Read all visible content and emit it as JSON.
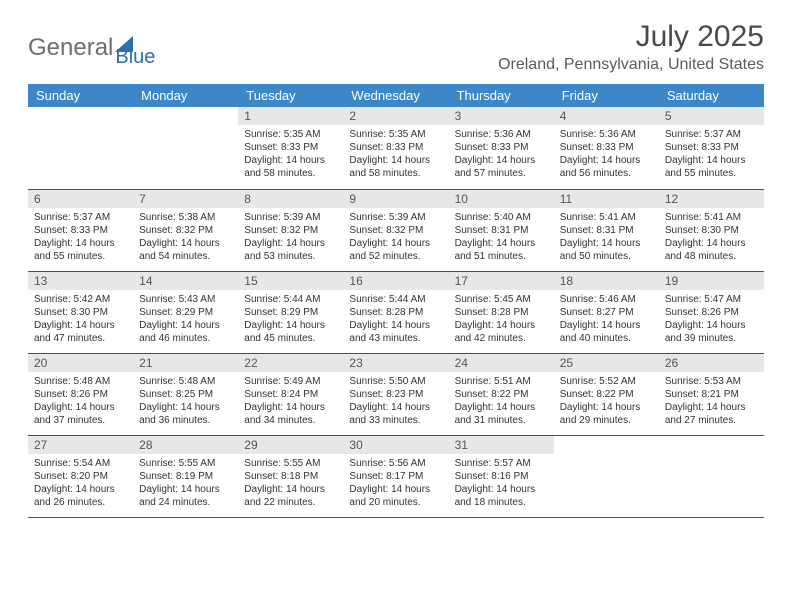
{
  "logo": {
    "text1": "General",
    "text2": "Blue"
  },
  "title": "July 2025",
  "location": "Oreland, Pennsylvania, United States",
  "colors": {
    "header_bg": "#3b87c8",
    "header_text": "#ffffff",
    "daynum_bg": "#e7e7e7",
    "border": "#1f5a8a",
    "logo_gray": "#6e6e6e",
    "logo_blue": "#2f6fa8"
  },
  "weekdays": [
    "Sunday",
    "Monday",
    "Tuesday",
    "Wednesday",
    "Thursday",
    "Friday",
    "Saturday"
  ],
  "weeks": [
    [
      null,
      null,
      {
        "n": "1",
        "sr": "5:35 AM",
        "ss": "8:33 PM",
        "dl": "14 hours and 58 minutes."
      },
      {
        "n": "2",
        "sr": "5:35 AM",
        "ss": "8:33 PM",
        "dl": "14 hours and 58 minutes."
      },
      {
        "n": "3",
        "sr": "5:36 AM",
        "ss": "8:33 PM",
        "dl": "14 hours and 57 minutes."
      },
      {
        "n": "4",
        "sr": "5:36 AM",
        "ss": "8:33 PM",
        "dl": "14 hours and 56 minutes."
      },
      {
        "n": "5",
        "sr": "5:37 AM",
        "ss": "8:33 PM",
        "dl": "14 hours and 55 minutes."
      }
    ],
    [
      {
        "n": "6",
        "sr": "5:37 AM",
        "ss": "8:33 PM",
        "dl": "14 hours and 55 minutes."
      },
      {
        "n": "7",
        "sr": "5:38 AM",
        "ss": "8:32 PM",
        "dl": "14 hours and 54 minutes."
      },
      {
        "n": "8",
        "sr": "5:39 AM",
        "ss": "8:32 PM",
        "dl": "14 hours and 53 minutes."
      },
      {
        "n": "9",
        "sr": "5:39 AM",
        "ss": "8:32 PM",
        "dl": "14 hours and 52 minutes."
      },
      {
        "n": "10",
        "sr": "5:40 AM",
        "ss": "8:31 PM",
        "dl": "14 hours and 51 minutes."
      },
      {
        "n": "11",
        "sr": "5:41 AM",
        "ss": "8:31 PM",
        "dl": "14 hours and 50 minutes."
      },
      {
        "n": "12",
        "sr": "5:41 AM",
        "ss": "8:30 PM",
        "dl": "14 hours and 48 minutes."
      }
    ],
    [
      {
        "n": "13",
        "sr": "5:42 AM",
        "ss": "8:30 PM",
        "dl": "14 hours and 47 minutes."
      },
      {
        "n": "14",
        "sr": "5:43 AM",
        "ss": "8:29 PM",
        "dl": "14 hours and 46 minutes."
      },
      {
        "n": "15",
        "sr": "5:44 AM",
        "ss": "8:29 PM",
        "dl": "14 hours and 45 minutes."
      },
      {
        "n": "16",
        "sr": "5:44 AM",
        "ss": "8:28 PM",
        "dl": "14 hours and 43 minutes."
      },
      {
        "n": "17",
        "sr": "5:45 AM",
        "ss": "8:28 PM",
        "dl": "14 hours and 42 minutes."
      },
      {
        "n": "18",
        "sr": "5:46 AM",
        "ss": "8:27 PM",
        "dl": "14 hours and 40 minutes."
      },
      {
        "n": "19",
        "sr": "5:47 AM",
        "ss": "8:26 PM",
        "dl": "14 hours and 39 minutes."
      }
    ],
    [
      {
        "n": "20",
        "sr": "5:48 AM",
        "ss": "8:26 PM",
        "dl": "14 hours and 37 minutes."
      },
      {
        "n": "21",
        "sr": "5:48 AM",
        "ss": "8:25 PM",
        "dl": "14 hours and 36 minutes."
      },
      {
        "n": "22",
        "sr": "5:49 AM",
        "ss": "8:24 PM",
        "dl": "14 hours and 34 minutes."
      },
      {
        "n": "23",
        "sr": "5:50 AM",
        "ss": "8:23 PM",
        "dl": "14 hours and 33 minutes."
      },
      {
        "n": "24",
        "sr": "5:51 AM",
        "ss": "8:22 PM",
        "dl": "14 hours and 31 minutes."
      },
      {
        "n": "25",
        "sr": "5:52 AM",
        "ss": "8:22 PM",
        "dl": "14 hours and 29 minutes."
      },
      {
        "n": "26",
        "sr": "5:53 AM",
        "ss": "8:21 PM",
        "dl": "14 hours and 27 minutes."
      }
    ],
    [
      {
        "n": "27",
        "sr": "5:54 AM",
        "ss": "8:20 PM",
        "dl": "14 hours and 26 minutes."
      },
      {
        "n": "28",
        "sr": "5:55 AM",
        "ss": "8:19 PM",
        "dl": "14 hours and 24 minutes."
      },
      {
        "n": "29",
        "sr": "5:55 AM",
        "ss": "8:18 PM",
        "dl": "14 hours and 22 minutes."
      },
      {
        "n": "30",
        "sr": "5:56 AM",
        "ss": "8:17 PM",
        "dl": "14 hours and 20 minutes."
      },
      {
        "n": "31",
        "sr": "5:57 AM",
        "ss": "8:16 PM",
        "dl": "14 hours and 18 minutes."
      },
      null,
      null
    ]
  ],
  "labels": {
    "sunrise": "Sunrise: ",
    "sunset": "Sunset: ",
    "daylight": "Daylight: "
  }
}
